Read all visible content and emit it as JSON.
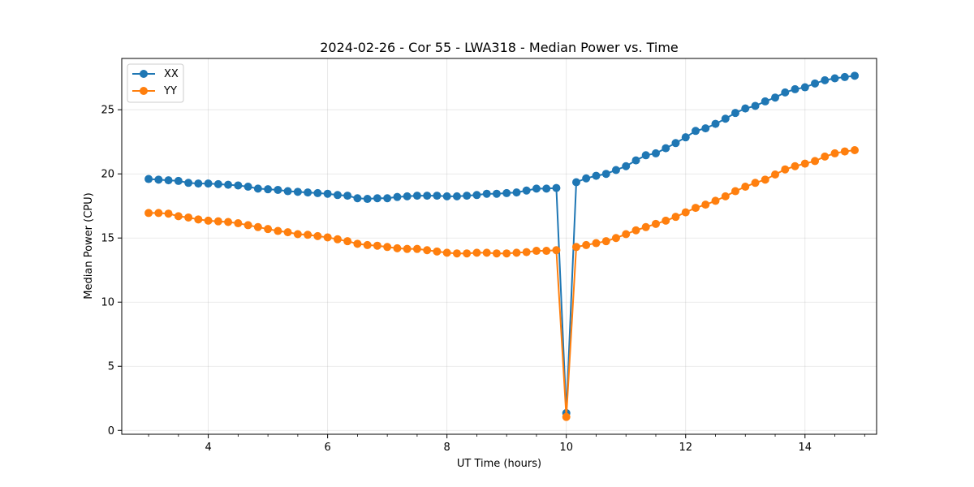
{
  "chart_data": {
    "type": "line",
    "title": "2024-02-26 - Cor 55 - LWA318 - Median Power vs. Time",
    "xlabel": "UT Time (hours)",
    "ylabel": "Median Power (CPU)",
    "xlim": [
      2.55,
      15.2
    ],
    "ylim": [
      -0.3,
      29.0
    ],
    "xticks": [
      4,
      6,
      8,
      10,
      12,
      14
    ],
    "xtick_labels": [
      "4",
      "6",
      "8",
      "10",
      "12",
      "14"
    ],
    "yticks": [
      0,
      5,
      10,
      15,
      20,
      25
    ],
    "ytick_labels": [
      "0",
      "5",
      "10",
      "15",
      "20",
      "25"
    ],
    "grid": true,
    "legend_position": "top-left",
    "x": [
      3.0,
      3.167,
      3.333,
      3.5,
      3.667,
      3.833,
      4.0,
      4.167,
      4.333,
      4.5,
      4.667,
      4.833,
      5.0,
      5.167,
      5.333,
      5.5,
      5.667,
      5.833,
      6.0,
      6.167,
      6.333,
      6.5,
      6.667,
      6.833,
      7.0,
      7.167,
      7.333,
      7.5,
      7.667,
      7.833,
      8.0,
      8.167,
      8.333,
      8.5,
      8.667,
      8.833,
      9.0,
      9.167,
      9.333,
      9.5,
      9.667,
      9.833,
      10.0,
      10.167,
      10.333,
      10.5,
      10.667,
      10.833,
      11.0,
      11.167,
      11.333,
      11.5,
      11.667,
      11.833,
      12.0,
      12.167,
      12.333,
      12.5,
      12.667,
      12.833,
      13.0,
      13.167,
      13.333,
      13.5,
      13.667,
      13.833,
      14.0,
      14.167,
      14.333,
      14.5,
      14.667,
      14.833
    ],
    "series": [
      {
        "name": "XX",
        "color": "#1f77b4",
        "values": [
          19.6,
          19.55,
          19.5,
          19.45,
          19.3,
          19.25,
          19.25,
          19.2,
          19.15,
          19.1,
          19.0,
          18.85,
          18.8,
          18.75,
          18.65,
          18.6,
          18.55,
          18.5,
          18.45,
          18.35,
          18.3,
          18.1,
          18.05,
          18.1,
          18.1,
          18.2,
          18.25,
          18.3,
          18.3,
          18.3,
          18.25,
          18.25,
          18.3,
          18.35,
          18.45,
          18.45,
          18.5,
          18.55,
          18.7,
          18.85,
          18.85,
          18.9,
          1.35,
          19.35,
          19.65,
          19.85,
          20.0,
          20.3,
          20.6,
          21.05,
          21.45,
          21.6,
          22.0,
          22.4,
          22.85,
          23.35,
          23.55,
          23.9,
          24.3,
          24.75,
          25.1,
          25.3,
          25.65,
          25.95,
          26.35,
          26.6,
          26.75,
          27.05,
          27.3,
          27.45,
          27.55,
          27.65
        ]
      },
      {
        "name": "YY",
        "color": "#ff7f0e",
        "values": [
          16.95,
          16.95,
          16.9,
          16.7,
          16.6,
          16.45,
          16.35,
          16.3,
          16.25,
          16.15,
          16.0,
          15.85,
          15.7,
          15.55,
          15.45,
          15.3,
          15.25,
          15.15,
          15.05,
          14.9,
          14.75,
          14.55,
          14.45,
          14.4,
          14.3,
          14.2,
          14.15,
          14.15,
          14.05,
          13.95,
          13.85,
          13.8,
          13.8,
          13.85,
          13.85,
          13.8,
          13.8,
          13.85,
          13.9,
          14.0,
          14.0,
          14.05,
          1.05,
          14.3,
          14.45,
          14.6,
          14.75,
          15.0,
          15.3,
          15.6,
          15.85,
          16.1,
          16.35,
          16.65,
          17.0,
          17.35,
          17.6,
          17.9,
          18.25,
          18.65,
          19.0,
          19.3,
          19.55,
          19.95,
          20.35,
          20.6,
          20.8,
          21.0,
          21.35,
          21.6,
          21.75,
          21.85
        ]
      }
    ]
  }
}
